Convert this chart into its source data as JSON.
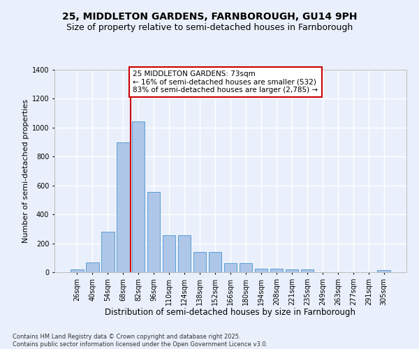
{
  "title": "25, MIDDLETON GARDENS, FARNBOROUGH, GU14 9PH",
  "subtitle": "Size of property relative to semi-detached houses in Farnborough",
  "xlabel": "Distribution of semi-detached houses by size in Farnborough",
  "ylabel": "Number of semi-detached properties",
  "categories": [
    "26sqm",
    "40sqm",
    "54sqm",
    "68sqm",
    "82sqm",
    "96sqm",
    "110sqm",
    "124sqm",
    "138sqm",
    "152sqm",
    "166sqm",
    "180sqm",
    "194sqm",
    "208sqm",
    "221sqm",
    "235sqm",
    "249sqm",
    "263sqm",
    "277sqm",
    "291sqm",
    "305sqm"
  ],
  "values": [
    20,
    70,
    280,
    900,
    1045,
    555,
    255,
    255,
    140,
    140,
    65,
    65,
    25,
    25,
    20,
    20,
    0,
    0,
    0,
    0,
    15
  ],
  "bar_color": "#aec6e8",
  "bar_edge_color": "#5a9fd4",
  "annotation_text": "25 MIDDLETON GARDENS: 73sqm\n← 16% of semi-detached houses are smaller (532)\n83% of semi-detached houses are larger (2,785) →",
  "annotation_box_color": "#ffffff",
  "annotation_border_color": "#cc0000",
  "line_color": "#cc0000",
  "ylim": [
    0,
    1400
  ],
  "yticks": [
    0,
    200,
    400,
    600,
    800,
    1000,
    1200,
    1400
  ],
  "background_color": "#eaf0fb",
  "grid_color": "#ffffff",
  "footnote": "Contains HM Land Registry data © Crown copyright and database right 2025.\nContains public sector information licensed under the Open Government Licence v3.0.",
  "title_fontsize": 10,
  "subtitle_fontsize": 9,
  "xlabel_fontsize": 8.5,
  "ylabel_fontsize": 8,
  "tick_fontsize": 7,
  "footnote_fontsize": 6,
  "annot_fontsize": 7.5
}
